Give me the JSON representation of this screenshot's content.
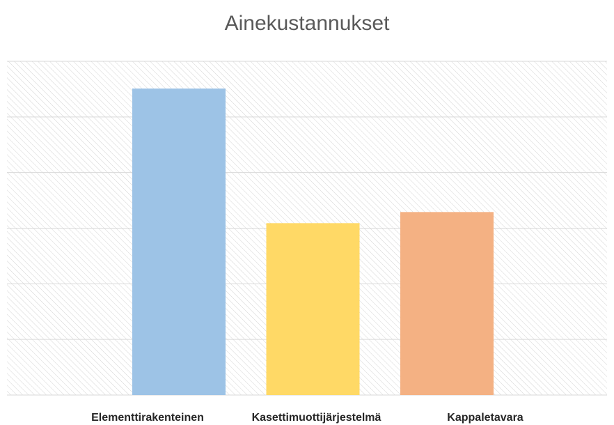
{
  "chart_data": {
    "type": "bar",
    "title": "Ainekustannukset",
    "categories": [
      "Elementtirakenteinen",
      "Kasettimuottijärjestelmä",
      "Kappaletavara"
    ],
    "values": [
      5.51,
      3.09,
      3.29
    ],
    "colors": [
      "#9dc3e6",
      "#ffd966",
      "#f4b183"
    ],
    "ylim": [
      0,
      6
    ],
    "yticks": [
      0,
      1,
      2,
      3,
      4,
      5,
      6
    ],
    "grid": true
  }
}
